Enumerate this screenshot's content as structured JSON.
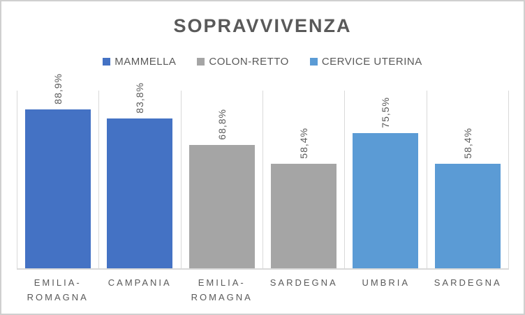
{
  "chart_data": {
    "type": "bar",
    "title": "SOPRAVVIVENZA",
    "legend_position": "top",
    "legend": [
      {
        "label": "MAMMELLA",
        "color": "#4472C4"
      },
      {
        "label": "COLON-RETTO",
        "color": "#A5A5A5"
      },
      {
        "label": "CERVICE UTERINA",
        "color": "#5B9BD5"
      }
    ],
    "ylim": [
      0,
      100
    ],
    "grid": "vertical-category-boundary-lines",
    "bars": [
      {
        "category": "EMILIA-ROMAGNA",
        "series": "MAMMELLA",
        "value": 88.9,
        "label": "88,9%",
        "color": "#4472C4"
      },
      {
        "category": "CAMPANIA",
        "series": "MAMMELLA",
        "value": 83.8,
        "label": "83,8%",
        "color": "#4472C4"
      },
      {
        "category": "EMILIA-ROMAGNA",
        "series": "COLON-RETTO",
        "value": 68.8,
        "label": "68,8%",
        "color": "#A5A5A5"
      },
      {
        "category": "SARDEGNA",
        "series": "COLON-RETTO",
        "value": 58.4,
        "label": "58,4%",
        "color": "#A5A5A5"
      },
      {
        "category": "UMBRIA",
        "series": "CERVICE UTERINA",
        "value": 75.5,
        "label": "75,5%",
        "color": "#5B9BD5"
      },
      {
        "category": "SARDEGNA",
        "series": "CERVICE UTERINA",
        "value": 58.4,
        "label": "58,4%",
        "color": "#5B9BD5"
      }
    ],
    "colors": {
      "title_text": "#595959",
      "label_text": "#595959",
      "grid_line": "#D9D9D9",
      "axis_line": "#D9D9D9",
      "frame_border": "#CFCFCF",
      "background": "#FFFFFF"
    }
  }
}
